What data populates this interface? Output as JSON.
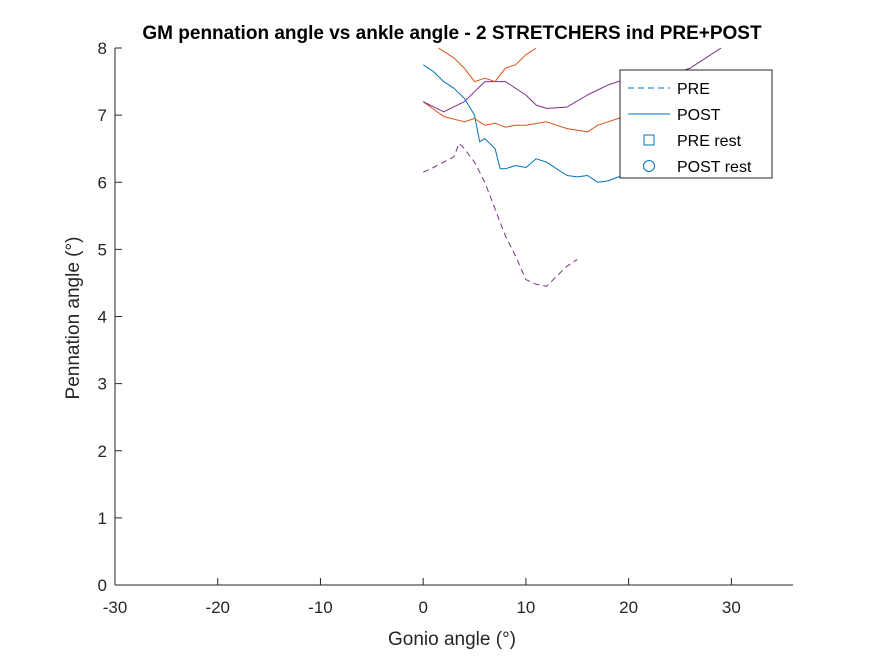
{
  "chart_data": {
    "type": "line",
    "title": "GM pennation angle vs ankle angle - 2 STRETCHERS ind PRE+POST",
    "xlabel": "Gonio angle (°)",
    "ylabel": "Pennation angle (°)",
    "xlim": [
      -30,
      36
    ],
    "ylim": [
      0,
      8
    ],
    "xticks": [
      -30,
      -20,
      -10,
      0,
      10,
      20,
      30
    ],
    "yticks": [
      0,
      1,
      2,
      3,
      4,
      5,
      6,
      7,
      8
    ],
    "grid": false,
    "legend_position": "top-right",
    "legend": [
      {
        "label": "PRE",
        "style": "dashed",
        "color": "#0072BD"
      },
      {
        "label": "POST",
        "style": "solid",
        "color": "#0072BD"
      },
      {
        "label": "PRE rest",
        "style": "square-marker",
        "color": "#0072BD"
      },
      {
        "label": "POST rest",
        "style": "circle-marker",
        "color": "#0072BD"
      }
    ],
    "series": [
      {
        "style": "dashed",
        "color": "#7E2F8E",
        "x": [
          0,
          1,
          2,
          3,
          3.5,
          4,
          5,
          6,
          7,
          8,
          9,
          10,
          11,
          12,
          13,
          14,
          15
        ],
        "y": [
          6.15,
          6.22,
          6.3,
          6.38,
          6.58,
          6.5,
          6.3,
          6.0,
          5.6,
          5.2,
          4.9,
          4.55,
          4.48,
          4.45,
          4.6,
          4.75,
          4.85
        ]
      },
      {
        "style": "solid",
        "color": "#0072BD",
        "x": [
          0,
          1,
          2,
          3,
          4,
          5,
          5.5,
          6,
          7,
          7.5,
          8,
          9,
          10,
          11,
          12,
          13,
          14,
          15,
          16,
          17,
          18,
          19,
          20
        ],
        "y": [
          7.75,
          7.65,
          7.5,
          7.4,
          7.25,
          7.0,
          6.6,
          6.65,
          6.5,
          6.2,
          6.2,
          6.25,
          6.22,
          6.35,
          6.3,
          6.2,
          6.1,
          6.08,
          6.1,
          6.0,
          6.02,
          6.08,
          6.12
        ]
      },
      {
        "style": "solid",
        "color": "#D95319",
        "x": [
          0,
          2,
          4,
          5,
          6,
          7,
          8,
          9,
          10,
          12,
          14,
          16,
          17,
          18,
          19,
          20
        ],
        "y": [
          7.2,
          6.98,
          6.9,
          6.95,
          6.85,
          6.88,
          6.82,
          6.85,
          6.85,
          6.9,
          6.8,
          6.75,
          6.85,
          6.9,
          6.95,
          7.0
        ]
      },
      {
        "style": "solid",
        "color": "#7E2F8E",
        "x": [
          0,
          2,
          4,
          6,
          8,
          10,
          11,
          12,
          14,
          16,
          18,
          20,
          22,
          24,
          26,
          28,
          29
        ],
        "y": [
          7.2,
          7.05,
          7.2,
          7.5,
          7.5,
          7.3,
          7.15,
          7.1,
          7.12,
          7.3,
          7.45,
          7.55,
          7.5,
          7.6,
          7.7,
          7.9,
          8.0
        ]
      },
      {
        "style": "solid",
        "color": "#D95319",
        "x": [
          1.5,
          3,
          4,
          5,
          6,
          7,
          8,
          9,
          10,
          11
        ],
        "y": [
          8.0,
          7.85,
          7.7,
          7.5,
          7.55,
          7.5,
          7.7,
          7.75,
          7.9,
          8.0
        ]
      }
    ]
  }
}
